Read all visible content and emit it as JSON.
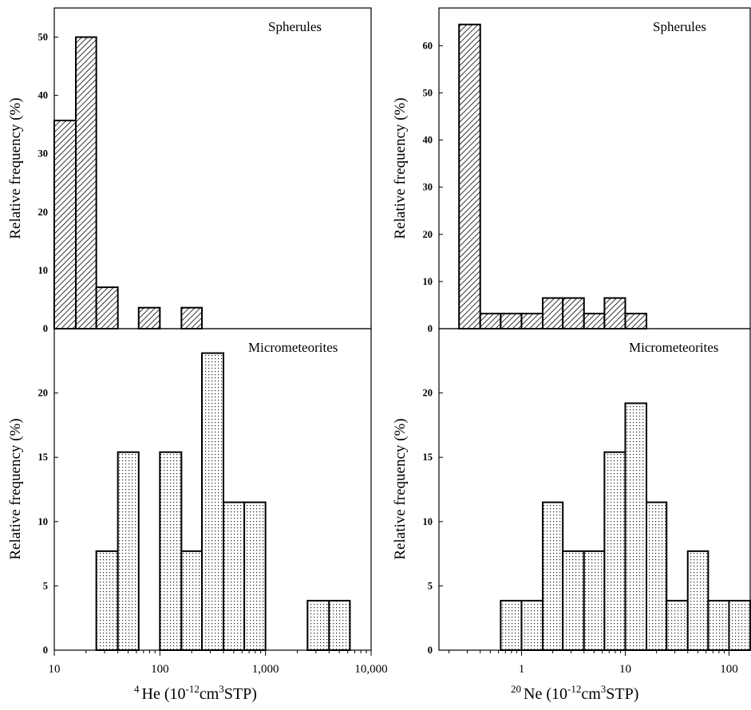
{
  "chart_data": [
    {
      "type": "bar",
      "panel": "top-left",
      "title": "Spherules",
      "ylabel": "Relative frequency (%)",
      "xscale": "log",
      "xlim": [
        10,
        10000
      ],
      "ylim": [
        0,
        55
      ],
      "yticks": [
        0,
        10,
        20,
        30,
        40,
        50
      ],
      "fill": "hatch",
      "bins": [
        {
          "x0": 10,
          "x1": 16,
          "value": 35.7
        },
        {
          "x0": 16,
          "x1": 25,
          "value": 50
        },
        {
          "x0": 25,
          "x1": 40,
          "value": 7.1
        },
        {
          "x0": 63,
          "x1": 100,
          "value": 3.6
        },
        {
          "x0": 160,
          "x1": 250,
          "value": 3.6
        }
      ]
    },
    {
      "type": "bar",
      "panel": "bottom-left",
      "title": "Micrometeorites",
      "ylabel": "Relative frequency (%)",
      "xlabel_parts": [
        "4",
        "He (10",
        "-12",
        "cm",
        "3",
        "STP)"
      ],
      "xscale": "log",
      "xlim": [
        10,
        10000
      ],
      "ylim": [
        0,
        25
      ],
      "yticks": [
        0,
        5,
        10,
        15,
        20
      ],
      "xticks": [
        10,
        100,
        1000,
        10000
      ],
      "xtick_labels": [
        "10",
        "100",
        "1,000",
        "10,000"
      ],
      "fill": "dots",
      "bins": [
        {
          "x0": 25,
          "x1": 40,
          "value": 7.7
        },
        {
          "x0": 40,
          "x1": 63,
          "value": 15.4
        },
        {
          "x0": 100,
          "x1": 160,
          "value": 15.4
        },
        {
          "x0": 160,
          "x1": 250,
          "value": 7.7
        },
        {
          "x0": 250,
          "x1": 400,
          "value": 23.1
        },
        {
          "x0": 400,
          "x1": 630,
          "value": 11.5
        },
        {
          "x0": 630,
          "x1": 1000,
          "value": 11.5
        },
        {
          "x0": 2500,
          "x1": 4000,
          "value": 3.85
        },
        {
          "x0": 4000,
          "x1": 6300,
          "value": 3.85
        }
      ]
    },
    {
      "type": "bar",
      "panel": "top-right",
      "title": "Spherules",
      "ylabel": "Relative frequency (%)",
      "xscale": "log",
      "xlim": [
        0.16,
        160
      ],
      "ylim": [
        0,
        68
      ],
      "yticks": [
        0,
        10,
        20,
        30,
        40,
        50,
        60
      ],
      "fill": "hatch",
      "bins": [
        {
          "x0": 0.25,
          "x1": 0.4,
          "value": 64.5
        },
        {
          "x0": 0.4,
          "x1": 0.63,
          "value": 3.2
        },
        {
          "x0": 0.63,
          "x1": 1.0,
          "value": 3.2
        },
        {
          "x0": 1.0,
          "x1": 1.6,
          "value": 3.2
        },
        {
          "x0": 1.6,
          "x1": 2.5,
          "value": 6.5
        },
        {
          "x0": 2.5,
          "x1": 4.0,
          "value": 6.5
        },
        {
          "x0": 4.0,
          "x1": 6.3,
          "value": 3.2
        },
        {
          "x0": 6.3,
          "x1": 10,
          "value": 6.5
        },
        {
          "x0": 10,
          "x1": 16,
          "value": 3.2
        }
      ]
    },
    {
      "type": "bar",
      "panel": "bottom-right",
      "title": "Micrometeorites",
      "ylabel": "Relative frequency (%)",
      "xlabel_parts": [
        "20",
        "Ne (10",
        "-12",
        "cm",
        "3",
        "STP)"
      ],
      "xscale": "log",
      "xlim": [
        0.16,
        160
      ],
      "ylim": [
        0,
        25
      ],
      "yticks": [
        0,
        5,
        10,
        15,
        20
      ],
      "xticks": [
        1,
        10,
        100
      ],
      "xtick_labels": [
        "1",
        "10",
        "100"
      ],
      "fill": "dots",
      "bins": [
        {
          "x0": 0.63,
          "x1": 1.0,
          "value": 3.85
        },
        {
          "x0": 1.0,
          "x1": 1.6,
          "value": 3.85
        },
        {
          "x0": 1.6,
          "x1": 2.5,
          "value": 11.5
        },
        {
          "x0": 2.5,
          "x1": 4.0,
          "value": 7.7
        },
        {
          "x0": 4.0,
          "x1": 6.3,
          "value": 7.7
        },
        {
          "x0": 6.3,
          "x1": 10,
          "value": 15.4
        },
        {
          "x0": 10,
          "x1": 16,
          "value": 19.2
        },
        {
          "x0": 16,
          "x1": 25,
          "value": 11.5
        },
        {
          "x0": 25,
          "x1": 40,
          "value": 3.85
        },
        {
          "x0": 40,
          "x1": 63,
          "value": 7.7
        },
        {
          "x0": 63,
          "x1": 100,
          "value": 3.85
        },
        {
          "x0": 100,
          "x1": 160,
          "value": 3.85
        }
      ]
    }
  ]
}
